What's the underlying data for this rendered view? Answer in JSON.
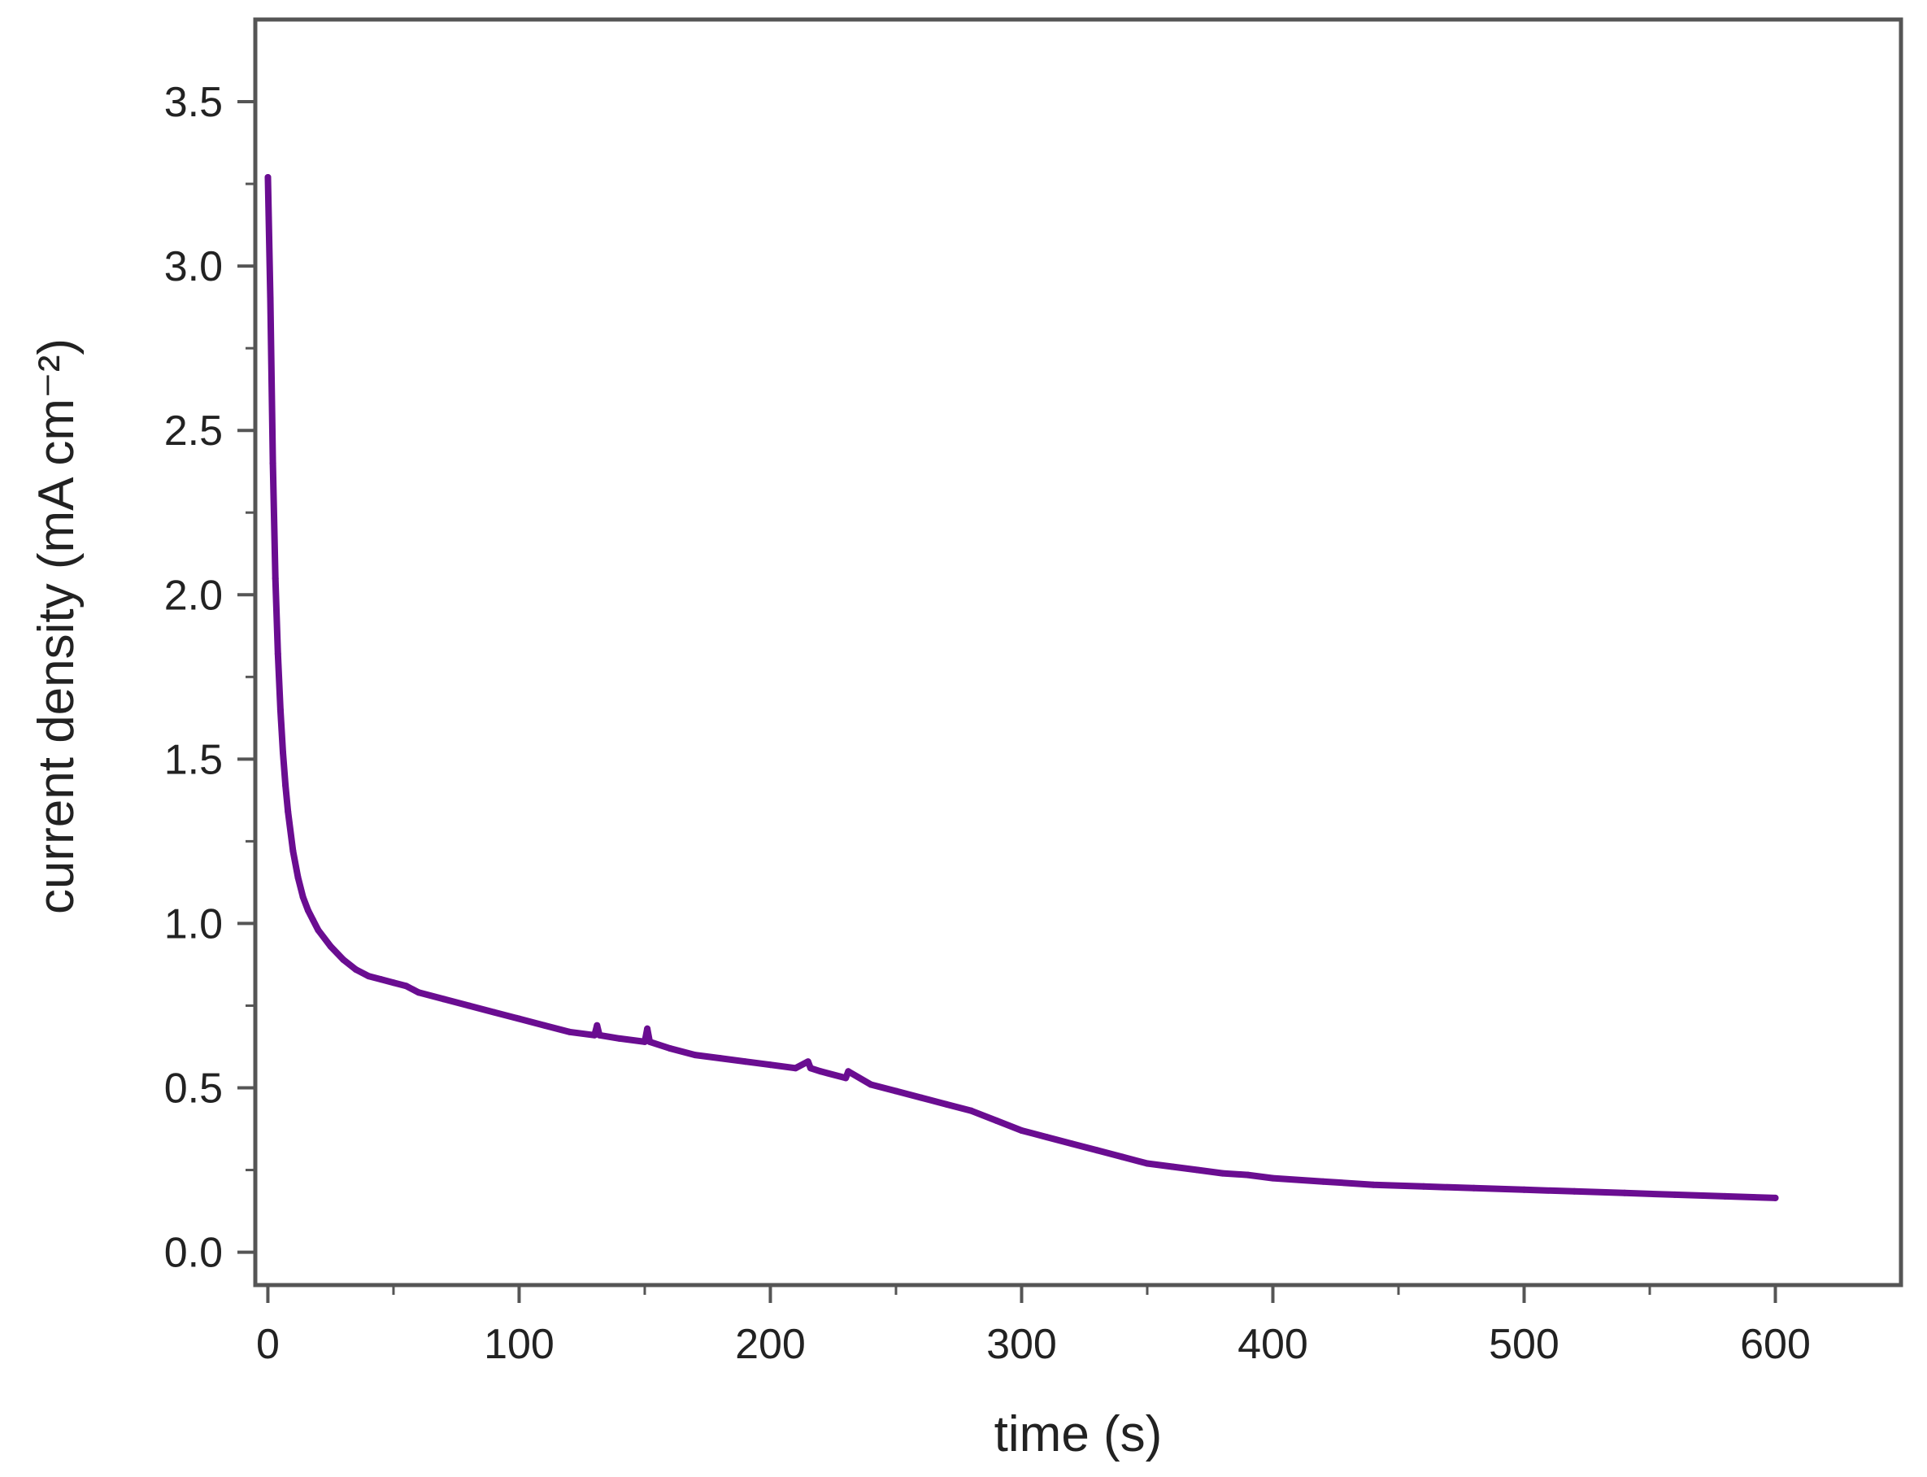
{
  "chart_data": {
    "type": "line",
    "xlabel": "time (s)",
    "ylabel": "current density (mA cm⁻²)",
    "xlim": [
      -5,
      650
    ],
    "ylim": [
      -0.1,
      3.75
    ],
    "x_ticks": [
      0,
      100,
      200,
      300,
      400,
      500,
      600
    ],
    "y_ticks": [
      0.0,
      0.5,
      1.0,
      1.5,
      2.0,
      2.5,
      3.0,
      3.5
    ],
    "x_tick_labels": [
      "0",
      "100",
      "200",
      "300",
      "400",
      "500",
      "600"
    ],
    "y_tick_labels": [
      "0.0",
      "0.5",
      "1.0",
      "1.5",
      "2.0",
      "2.5",
      "3.0",
      "3.5"
    ],
    "grid": false,
    "line_color": "#6a0d91",
    "series": [
      {
        "x": [
          0,
          1,
          2,
          3,
          4,
          5,
          6,
          7,
          8,
          10,
          12,
          14,
          16,
          18,
          20,
          25,
          30,
          35,
          40,
          45,
          50,
          55,
          60,
          70,
          80,
          90,
          100,
          110,
          120,
          130,
          131,
          132,
          140,
          150,
          151,
          152,
          160,
          170,
          180,
          190,
          200,
          210,
          215,
          216,
          220,
          230,
          231,
          240,
          250,
          260,
          270,
          280,
          290,
          300,
          310,
          320,
          330,
          340,
          350,
          360,
          370,
          380,
          390,
          400,
          420,
          440,
          460,
          480,
          500,
          520,
          540,
          560,
          580,
          600
        ],
        "y": [
          3.27,
          2.9,
          2.4,
          2.05,
          1.82,
          1.65,
          1.52,
          1.42,
          1.34,
          1.22,
          1.14,
          1.08,
          1.04,
          1.01,
          0.98,
          0.93,
          0.89,
          0.86,
          0.84,
          0.83,
          0.82,
          0.81,
          0.79,
          0.77,
          0.75,
          0.73,
          0.71,
          0.69,
          0.67,
          0.66,
          0.69,
          0.66,
          0.65,
          0.64,
          0.68,
          0.64,
          0.62,
          0.6,
          0.59,
          0.58,
          0.57,
          0.56,
          0.58,
          0.56,
          0.55,
          0.53,
          0.55,
          0.51,
          0.49,
          0.47,
          0.45,
          0.43,
          0.4,
          0.37,
          0.35,
          0.33,
          0.31,
          0.29,
          0.27,
          0.26,
          0.25,
          0.24,
          0.235,
          0.225,
          0.215,
          0.205,
          0.2,
          0.195,
          0.19,
          0.185,
          0.18,
          0.175,
          0.17,
          0.165
        ]
      }
    ]
  }
}
